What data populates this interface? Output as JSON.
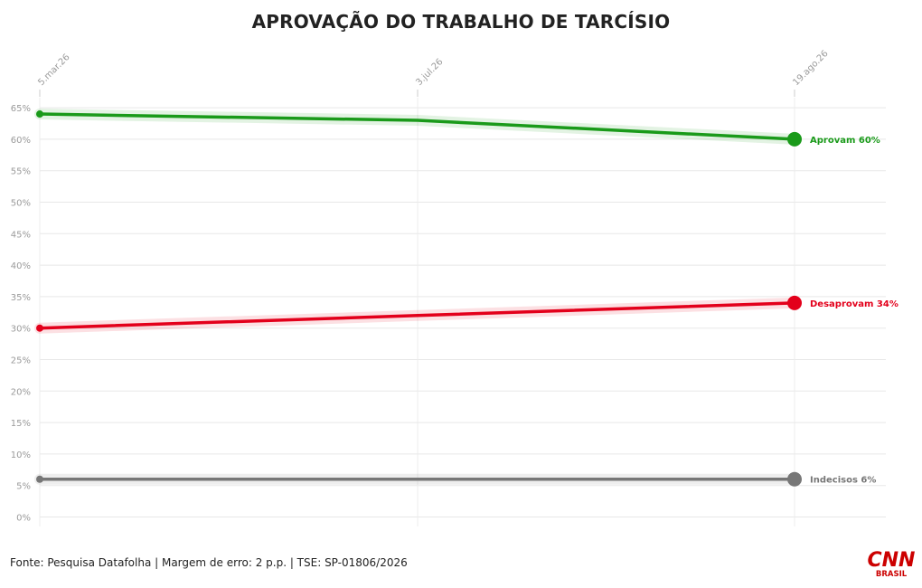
{
  "chart_data": {
    "type": "line",
    "title": "APROVAÇÃO DO TRABALHO DE TARCÍSIO",
    "x": [
      "5.mar.26",
      "3.jul.26",
      "19.ago.26"
    ],
    "yticks": [
      "0%",
      "5%",
      "10%",
      "15%",
      "20%",
      "25%",
      "30%",
      "35%",
      "40%",
      "45%",
      "50%",
      "55%",
      "60%",
      "65%"
    ],
    "ylim": [
      0,
      67
    ],
    "grid": true,
    "series": [
      {
        "name": "Aprovam",
        "label": "Aprovam 60%",
        "color": "#1a9a1a",
        "values": [
          64,
          63,
          60
        ]
      },
      {
        "name": "Desaprovam",
        "label": "Desaprovam 34%",
        "color": "#e3001b",
        "values": [
          30,
          32,
          34
        ]
      },
      {
        "name": "Indecisos",
        "label": "Indecisos 6%",
        "color": "#777777",
        "values": [
          6,
          6,
          6
        ]
      }
    ]
  },
  "footer": {
    "source": "Fonte: Pesquisa Datafolha | Margem de erro: 2 p.p. | TSE: SP-01806/2026"
  },
  "brand": {
    "logo_text": "CNN",
    "logo_sub": "BRASIL",
    "color": "#cc0000"
  }
}
